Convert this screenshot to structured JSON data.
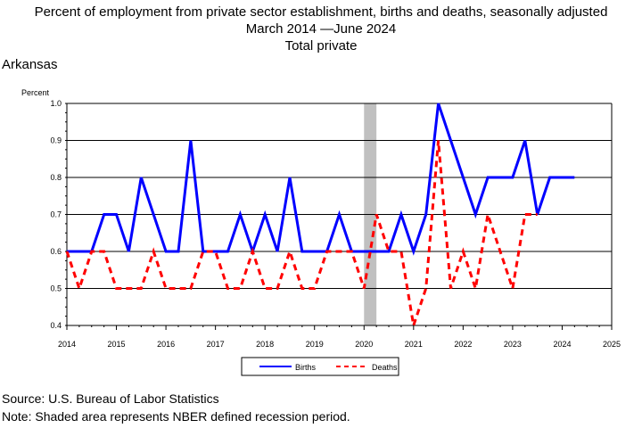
{
  "title": {
    "line1": "Percent of employment from private sector establishment, births and deaths, seasonally adjusted",
    "line2": "March 2014 —June 2024",
    "line3": "Total private"
  },
  "state": "Arkansas",
  "footer": {
    "source": "Source: U.S. Bureau of Labor Statistics",
    "note": "Note: Shaded area represents NBER defined recession period."
  },
  "chart_data": {
    "type": "line",
    "ylabel": "Percent",
    "xlabel": "",
    "ylim": [
      0.4,
      1.0
    ],
    "xlim": [
      2014,
      2025
    ],
    "yticks": [
      "0.4",
      "0.5",
      "0.6",
      "0.7",
      "0.8",
      "0.9",
      "1.0"
    ],
    "xticks": [
      "2014",
      "2015",
      "2016",
      "2017",
      "2018",
      "2019",
      "2020",
      "2021",
      "2022",
      "2023",
      "2024",
      "2025"
    ],
    "grid": true,
    "legend_placement": "bottom-center",
    "recession": {
      "start": 2020.0,
      "end": 2020.25,
      "color": "#c0c0c0"
    },
    "series": [
      {
        "name": "Births",
        "color": "#0000ff",
        "style": "solid",
        "x": [
          2014.0,
          2014.25,
          2014.5,
          2014.75,
          2015.0,
          2015.25,
          2015.5,
          2015.75,
          2016.0,
          2016.25,
          2016.5,
          2016.75,
          2017.0,
          2017.25,
          2017.5,
          2017.75,
          2018.0,
          2018.25,
          2018.5,
          2018.75,
          2019.0,
          2019.25,
          2019.5,
          2019.75,
          2020.0,
          2020.25,
          2020.5,
          2020.75,
          2021.0,
          2021.25,
          2021.5,
          2021.75,
          2022.0,
          2022.25,
          2022.5,
          2022.75,
          2023.0,
          2023.25,
          2023.5,
          2023.75,
          2024.0,
          2024.25
        ],
        "values": [
          0.6,
          0.6,
          0.6,
          0.7,
          0.7,
          0.6,
          0.8,
          0.7,
          0.6,
          0.6,
          0.9,
          0.6,
          0.6,
          0.6,
          0.7,
          0.6,
          0.7,
          0.6,
          0.8,
          0.6,
          0.6,
          0.6,
          0.7,
          0.6,
          0.6,
          0.6,
          0.6,
          0.7,
          0.6,
          0.7,
          1.0,
          0.9,
          0.8,
          0.7,
          0.8,
          0.8,
          0.8,
          0.9,
          0.7,
          0.8,
          0.8,
          0.8
        ]
      },
      {
        "name": "Deaths",
        "color": "#ff0000",
        "style": "dashed",
        "x": [
          2014.0,
          2014.25,
          2014.5,
          2014.75,
          2015.0,
          2015.25,
          2015.5,
          2015.75,
          2016.0,
          2016.25,
          2016.5,
          2016.75,
          2017.0,
          2017.25,
          2017.5,
          2017.75,
          2018.0,
          2018.25,
          2018.5,
          2018.75,
          2019.0,
          2019.25,
          2019.5,
          2019.75,
          2020.0,
          2020.25,
          2020.5,
          2020.75,
          2021.0,
          2021.25,
          2021.5,
          2021.75,
          2022.0,
          2022.25,
          2022.5,
          2022.75,
          2023.0,
          2023.25,
          2023.5
        ],
        "values": [
          0.6,
          0.5,
          0.6,
          0.6,
          0.5,
          0.5,
          0.5,
          0.6,
          0.5,
          0.5,
          0.5,
          0.6,
          0.6,
          0.5,
          0.5,
          0.6,
          0.5,
          0.5,
          0.6,
          0.5,
          0.5,
          0.6,
          0.6,
          0.6,
          0.5,
          0.7,
          0.6,
          0.6,
          0.4,
          0.5,
          0.9,
          0.5,
          0.6,
          0.5,
          0.7,
          0.6,
          0.5,
          0.7,
          0.7
        ]
      }
    ]
  }
}
